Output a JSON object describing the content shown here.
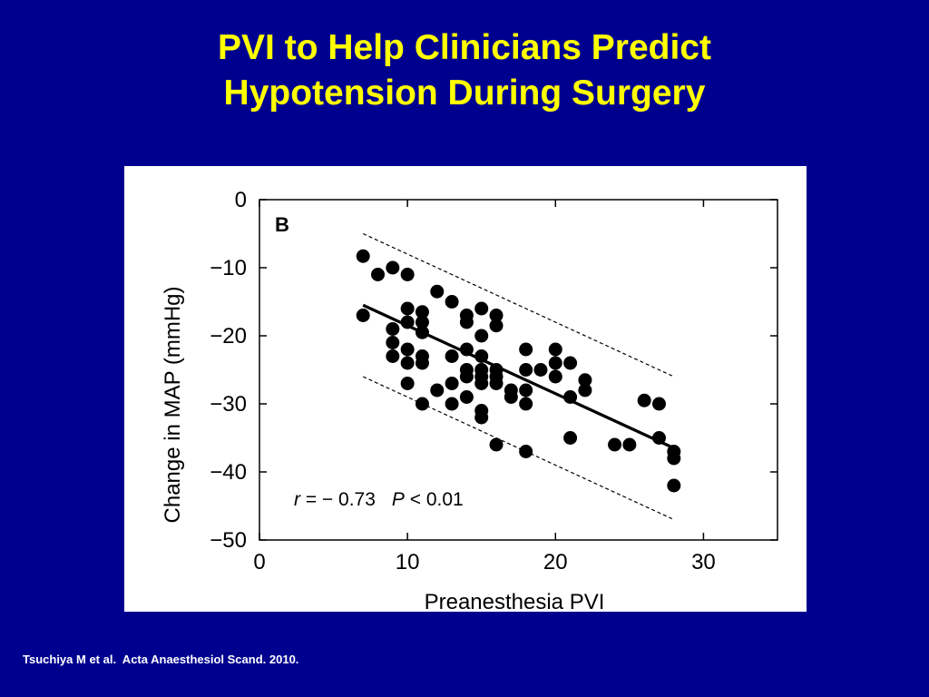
{
  "slide": {
    "title_line1": "PVI to Help Clinicians Predict",
    "title_line2": "Hypotension During Surgery",
    "citation": "Tsuchiya M et al.  Acta Anaesthesiol Scand. 2010.",
    "background_color": "#00008f",
    "title_color": "#ffff00"
  },
  "chart_data": {
    "type": "scatter",
    "panel_label": "B",
    "title": "",
    "xlabel": "Preanesthesia PVI",
    "ylabel": "Change in MAP (mmHg)",
    "xlim": [
      0,
      35
    ],
    "ylim": [
      -50,
      0
    ],
    "xticks": [
      0,
      10,
      20,
      30
    ],
    "yticks": [
      0,
      -10,
      -20,
      -30,
      -40,
      -50
    ],
    "grid": false,
    "annotation": {
      "r_symbol": "r",
      "r_value": " = − 0.73",
      "p_symbol": "P",
      "p_value": " < 0.01"
    },
    "regression_line": {
      "x": [
        7,
        28
      ],
      "y": [
        -15.5,
        -36.5
      ]
    },
    "confidence_bands": {
      "upper": {
        "x": [
          7,
          28
        ],
        "y": [
          -5,
          -26
        ]
      },
      "lower": {
        "x": [
          7,
          28
        ],
        "y": [
          -26,
          -47
        ]
      }
    },
    "points": [
      {
        "x": 7,
        "y": -8.3
      },
      {
        "x": 7,
        "y": -17
      },
      {
        "x": 8,
        "y": -11
      },
      {
        "x": 9,
        "y": -10
      },
      {
        "x": 9,
        "y": -19
      },
      {
        "x": 9,
        "y": -21
      },
      {
        "x": 9,
        "y": -23
      },
      {
        "x": 10,
        "y": -11
      },
      {
        "x": 10,
        "y": -16
      },
      {
        "x": 10,
        "y": -18
      },
      {
        "x": 10,
        "y": -22
      },
      {
        "x": 10,
        "y": -24
      },
      {
        "x": 10,
        "y": -27
      },
      {
        "x": 11,
        "y": -16.5
      },
      {
        "x": 11,
        "y": -18
      },
      {
        "x": 11,
        "y": -19.5
      },
      {
        "x": 11,
        "y": -23
      },
      {
        "x": 11,
        "y": -24
      },
      {
        "x": 11,
        "y": -30
      },
      {
        "x": 12,
        "y": -13.5
      },
      {
        "x": 12,
        "y": -28
      },
      {
        "x": 13,
        "y": -15
      },
      {
        "x": 13,
        "y": -23
      },
      {
        "x": 13,
        "y": -27
      },
      {
        "x": 13,
        "y": -30
      },
      {
        "x": 14,
        "y": -17
      },
      {
        "x": 14,
        "y": -18
      },
      {
        "x": 14,
        "y": -22
      },
      {
        "x": 14,
        "y": -25
      },
      {
        "x": 14,
        "y": -26
      },
      {
        "x": 14,
        "y": -29
      },
      {
        "x": 15,
        "y": -16
      },
      {
        "x": 15,
        "y": -20
      },
      {
        "x": 15,
        "y": -23
      },
      {
        "x": 15,
        "y": -25
      },
      {
        "x": 15,
        "y": -26
      },
      {
        "x": 15,
        "y": -27
      },
      {
        "x": 15,
        "y": -31
      },
      {
        "x": 15,
        "y": -32
      },
      {
        "x": 16,
        "y": -17
      },
      {
        "x": 16,
        "y": -18.5
      },
      {
        "x": 16,
        "y": -25
      },
      {
        "x": 16,
        "y": -26
      },
      {
        "x": 16,
        "y": -27
      },
      {
        "x": 16,
        "y": -36
      },
      {
        "x": 17,
        "y": -28
      },
      {
        "x": 17,
        "y": -29
      },
      {
        "x": 18,
        "y": -22
      },
      {
        "x": 18,
        "y": -25
      },
      {
        "x": 18,
        "y": -28
      },
      {
        "x": 18,
        "y": -30
      },
      {
        "x": 18,
        "y": -37
      },
      {
        "x": 19,
        "y": -25
      },
      {
        "x": 20,
        "y": -22
      },
      {
        "x": 20,
        "y": -24
      },
      {
        "x": 20,
        "y": -26
      },
      {
        "x": 21,
        "y": -24
      },
      {
        "x": 21,
        "y": -29
      },
      {
        "x": 21,
        "y": -35
      },
      {
        "x": 22,
        "y": -26.5
      },
      {
        "x": 22,
        "y": -28
      },
      {
        "x": 24,
        "y": -36
      },
      {
        "x": 25,
        "y": -36
      },
      {
        "x": 26,
        "y": -29.5
      },
      {
        "x": 27,
        "y": -30
      },
      {
        "x": 27,
        "y": -35
      },
      {
        "x": 28,
        "y": -37
      },
      {
        "x": 28,
        "y": -38
      },
      {
        "x": 28,
        "y": -42
      }
    ]
  }
}
